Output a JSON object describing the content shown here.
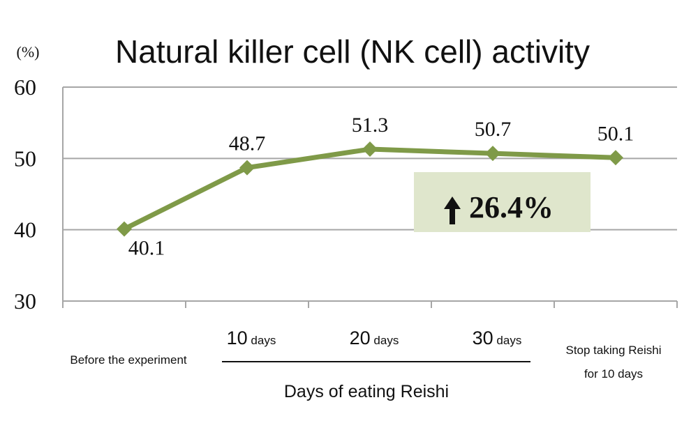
{
  "chart_data": {
    "type": "line",
    "title": "Natural killer cell (NK cell) activity",
    "ylabel": "(%)",
    "ylim": [
      30,
      60
    ],
    "yticks": [
      "30",
      "40",
      "50",
      "60"
    ],
    "grid": true,
    "categories": [
      {
        "label": "Before the experiment"
      },
      {
        "num": "10",
        "unit": "days"
      },
      {
        "num": "20",
        "unit": "days"
      },
      {
        "num": "30",
        "unit": "days"
      },
      {
        "line1": "Stop taking Reishi",
        "line2": "for 10 days"
      }
    ],
    "series": [
      {
        "name": "NK cell activity",
        "values": [
          40.1,
          48.7,
          51.3,
          50.7,
          50.1
        ],
        "labels": [
          "40.1",
          "48.7",
          "51.3",
          "50.7",
          "50.1"
        ]
      }
    ],
    "xgroup_label": "Days of eating Reishi",
    "annotation": {
      "arrow": "up-arrow-icon",
      "text": "26.4%"
    },
    "colors": {
      "line": "#7f9a48",
      "annotation_bg": "#dfe6cc",
      "grid": "#a6a6a6"
    }
  }
}
